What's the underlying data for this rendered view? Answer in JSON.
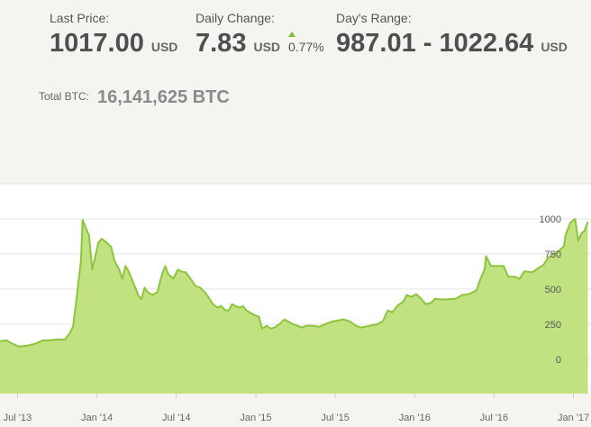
{
  "header": {
    "last_price": {
      "label": "Last Price:",
      "value": "1017.00",
      "unit": "USD"
    },
    "daily_change": {
      "label": "Daily Change:",
      "value": "7.83",
      "unit": "USD",
      "percent": "0.77%"
    },
    "days_range": {
      "label": "Day's Range:",
      "value": "987.01 - 1022.64",
      "unit": "USD"
    },
    "total_btc": {
      "label": "Total BTC:",
      "value": "16,141,625 BTC"
    }
  },
  "chart_data": {
    "type": "area",
    "color": "#c2e282",
    "line_color": "#8cc43c",
    "grid": true,
    "x": [
      2013.39,
      2013.43,
      2013.47,
      2013.51,
      2013.56,
      2013.61,
      2013.66,
      2013.7,
      2013.76,
      2013.8,
      2013.83,
      2013.85,
      2013.87,
      2013.9,
      2013.91,
      2013.94,
      2013.95,
      2013.97,
      2013.99,
      2014.01,
      2014.03,
      2014.06,
      2014.09,
      2014.11,
      2014.14,
      2014.16,
      2014.18,
      2014.2,
      2014.23,
      2014.26,
      2014.28,
      2014.3,
      2014.32,
      2014.35,
      2014.38,
      2014.41,
      2014.43,
      2014.45,
      2014.48,
      2014.51,
      2014.53,
      2014.56,
      2014.59,
      2014.62,
      2014.65,
      2014.68,
      2014.7,
      2014.73,
      2014.76,
      2014.78,
      2014.81,
      2014.83,
      2014.85,
      2014.87,
      2014.9,
      2014.92,
      2014.94,
      2014.97,
      2014.99,
      2015.02,
      2015.04,
      2015.07,
      2015.09,
      2015.12,
      2015.15,
      2015.18,
      2015.2,
      2015.23,
      2015.26,
      2015.29,
      2015.32,
      2015.36,
      2015.4,
      2015.44,
      2015.49,
      2015.55,
      2015.59,
      2015.63,
      2015.66,
      2015.72,
      2015.77,
      2015.8,
      2015.83,
      2015.86,
      2015.89,
      2015.93,
      2015.95,
      2015.98,
      2016.01,
      2016.04,
      2016.07,
      2016.1,
      2016.13,
      2016.16,
      2016.2,
      2016.26,
      2016.3,
      2016.34,
      2016.39,
      2016.41,
      2016.44,
      2016.45,
      2016.48,
      2016.51,
      2016.56,
      2016.59,
      2016.63,
      2016.66,
      2016.69,
      2016.74,
      2016.78,
      2016.81,
      2016.84,
      2016.88,
      2016.91,
      2016.94,
      2016.95,
      2016.98,
      2017.01,
      2017.03,
      2017.05,
      2017.07,
      2017.09
    ],
    "values": [
      129,
      135,
      110,
      90,
      97,
      110,
      135,
      135,
      142,
      142,
      187,
      232,
      413,
      703,
      993,
      909,
      884,
      639,
      735,
      832,
      858,
      832,
      800,
      703,
      639,
      574,
      664,
      626,
      542,
      458,
      426,
      510,
      477,
      458,
      477,
      606,
      664,
      606,
      574,
      639,
      626,
      619,
      574,
      522,
      510,
      477,
      445,
      393,
      368,
      380,
      348,
      348,
      393,
      380,
      368,
      380,
      348,
      329,
      316,
      303,
      219,
      239,
      219,
      226,
      252,
      284,
      271,
      252,
      239,
      226,
      239,
      239,
      232,
      252,
      271,
      284,
      271,
      239,
      226,
      239,
      252,
      271,
      348,
      335,
      380,
      413,
      458,
      445,
      464,
      432,
      393,
      400,
      432,
      426,
      426,
      432,
      458,
      464,
      490,
      561,
      639,
      735,
      664,
      664,
      664,
      587,
      587,
      574,
      626,
      619,
      651,
      671,
      722,
      755,
      774,
      806,
      884,
      974,
      1000,
      845,
      897,
      916,
      980
    ],
    "xlim": [
      2013.39,
      2017.11
    ],
    "ylim": [
      -245,
      1250
    ],
    "yticks": [
      0,
      250,
      500,
      750,
      1000
    ],
    "xticks": [
      {
        "value": 2013.5,
        "label": "Jul '13"
      },
      {
        "value": 2014.0,
        "label": "Jan '14"
      },
      {
        "value": 2014.5,
        "label": "Jul '14"
      },
      {
        "value": 2015.0,
        "label": "Jan '15"
      },
      {
        "value": 2015.5,
        "label": "Jul '15"
      },
      {
        "value": 2016.0,
        "label": "Jan '16"
      },
      {
        "value": 2016.5,
        "label": "Jul '16"
      },
      {
        "value": 2017.0,
        "label": "Jan '17"
      }
    ]
  }
}
